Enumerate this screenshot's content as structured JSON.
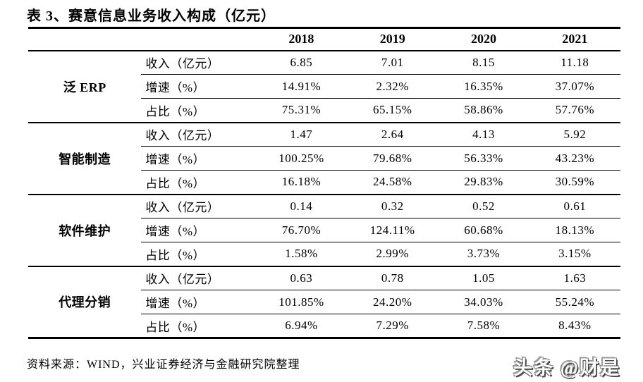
{
  "title": "表 3、赛意信息业务收入构成（亿元）",
  "source": "资料来源：WIND，兴业证券经济与金融研究院整理",
  "watermark": "头条 @财是",
  "table": {
    "columns": [
      "2018",
      "2019",
      "2020",
      "2021"
    ],
    "row_labels": [
      "收入（亿元）",
      "增速（%）",
      "占比（%）"
    ],
    "groups": [
      {
        "name": "泛 ERP",
        "rows": [
          [
            "6.85",
            "7.01",
            "8.15",
            "11.18"
          ],
          [
            "14.91%",
            "2.32%",
            "16.35%",
            "37.07%"
          ],
          [
            "75.31%",
            "65.15%",
            "58.86%",
            "57.76%"
          ]
        ]
      },
      {
        "name": "智能制造",
        "rows": [
          [
            "1.47",
            "2.64",
            "4.13",
            "5.92"
          ],
          [
            "100.25%",
            "79.68%",
            "56.33%",
            "43.23%"
          ],
          [
            "16.18%",
            "24.58%",
            "29.83%",
            "30.59%"
          ]
        ]
      },
      {
        "name": "软件维护",
        "rows": [
          [
            "0.14",
            "0.32",
            "0.52",
            "0.61"
          ],
          [
            "76.70%",
            "124.11%",
            "60.68%",
            "18.13%"
          ],
          [
            "1.58%",
            "2.99%",
            "3.73%",
            "3.15%"
          ]
        ]
      },
      {
        "name": "代理分销",
        "rows": [
          [
            "0.63",
            "0.78",
            "1.05",
            "1.63"
          ],
          [
            "101.85%",
            "24.20%",
            "34.03%",
            "55.24%"
          ],
          [
            "6.94%",
            "7.29%",
            "7.58%",
            "8.43%"
          ]
        ]
      }
    ]
  },
  "chart_data": {
    "type": "table",
    "title": "表 3、赛意信息业务收入构成（亿元）",
    "categories": [
      "2018",
      "2019",
      "2020",
      "2021"
    ],
    "series": [
      {
        "name": "泛ERP 收入（亿元）",
        "values": [
          6.85,
          7.01,
          8.15,
          11.18
        ]
      },
      {
        "name": "泛ERP 增速（%）",
        "values": [
          14.91,
          2.32,
          16.35,
          37.07
        ]
      },
      {
        "name": "泛ERP 占比（%）",
        "values": [
          75.31,
          65.15,
          58.86,
          57.76
        ]
      },
      {
        "name": "智能制造 收入（亿元）",
        "values": [
          1.47,
          2.64,
          4.13,
          5.92
        ]
      },
      {
        "name": "智能制造 增速（%）",
        "values": [
          100.25,
          79.68,
          56.33,
          43.23
        ]
      },
      {
        "name": "智能制造 占比（%）",
        "values": [
          16.18,
          24.58,
          29.83,
          30.59
        ]
      },
      {
        "name": "软件维护 收入（亿元）",
        "values": [
          0.14,
          0.32,
          0.52,
          0.61
        ]
      },
      {
        "name": "软件维护 增速（%）",
        "values": [
          76.7,
          124.11,
          60.68,
          18.13
        ]
      },
      {
        "name": "软件维护 占比（%）",
        "values": [
          1.58,
          2.99,
          3.73,
          3.15
        ]
      },
      {
        "name": "代理分销 收入（亿元）",
        "values": [
          0.63,
          0.78,
          1.05,
          1.63
        ]
      },
      {
        "name": "代理分销 增速（%）",
        "values": [
          101.85,
          24.2,
          34.03,
          55.24
        ]
      },
      {
        "name": "代理分销 占比（%）",
        "values": [
          6.94,
          7.29,
          7.58,
          8.43
        ]
      }
    ]
  }
}
